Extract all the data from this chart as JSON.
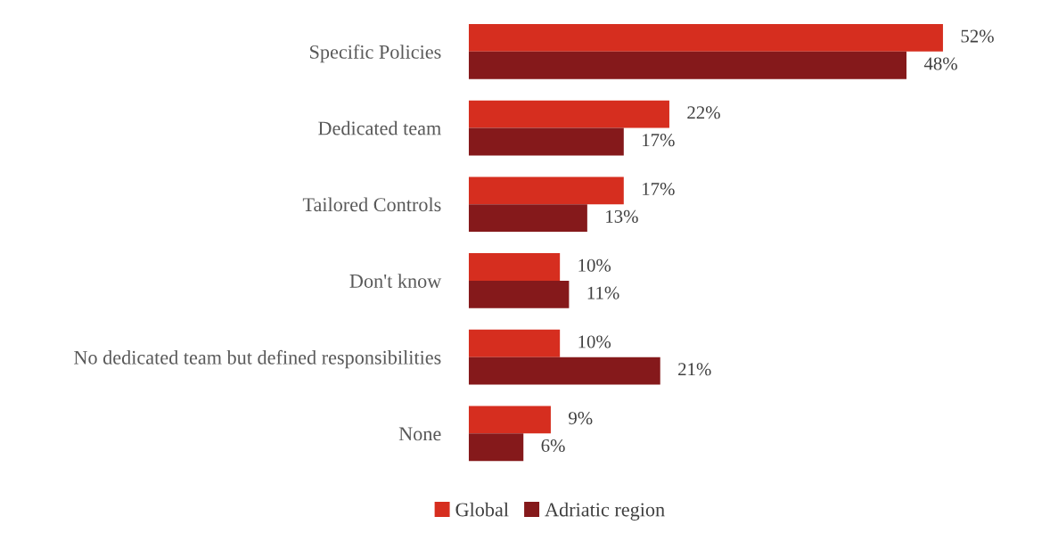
{
  "chart_data": {
    "type": "bar",
    "orientation": "horizontal",
    "categories": [
      "Specific Policies",
      "Dedicated team",
      "Tailored Controls",
      "Don't know",
      "No dedicated team but defined responsibilities",
      "None"
    ],
    "series": [
      {
        "name": "Global",
        "color": "#d62e1f",
        "values": [
          52,
          22,
          17,
          10,
          10,
          9
        ],
        "value_labels": [
          "52%",
          "22%",
          "17%",
          "10%",
          "10%",
          "9%"
        ]
      },
      {
        "name": "Adriatic region",
        "color": "#85191b",
        "values": [
          48,
          17,
          13,
          11,
          21,
          6
        ],
        "value_labels": [
          "48%",
          "17%",
          "13%",
          "11%",
          "21%",
          "6%"
        ]
      }
    ],
    "legend": "bottom",
    "grid": false
  }
}
